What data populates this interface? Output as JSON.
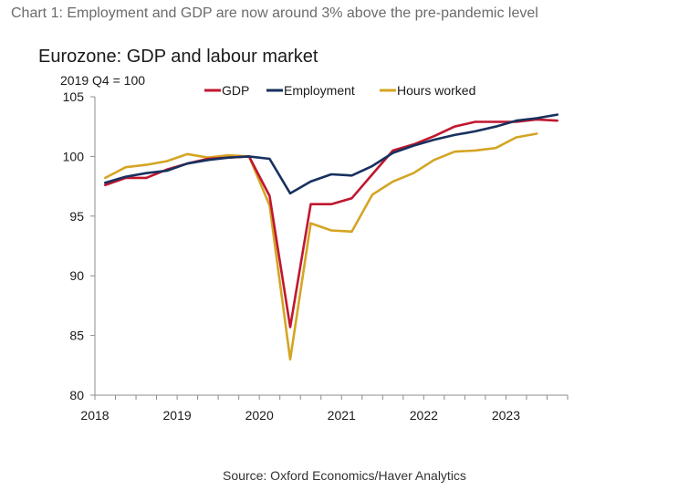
{
  "caption": "Chart 1: Employment and GDP are now around 3% above the pre-pandemic level",
  "source": "Source: Oxford Economics/Haver Analytics",
  "colors": {
    "GDP": "#c0172f",
    "Employment": "#17315e",
    "Hours worked": "#d4a524",
    "axis": "#8c8c8c"
  },
  "chart_data": {
    "type": "line",
    "title": "Eurozone: GDP and labour market",
    "ylabel": "2019 Q4 = 100",
    "xlabel": "",
    "ylim": [
      80,
      105
    ],
    "yticks": [
      80,
      85,
      90,
      95,
      100,
      105
    ],
    "year_labels": [
      "2018",
      "2019",
      "2020",
      "2021",
      "2022",
      "2023"
    ],
    "x": [
      "2018Q1",
      "2018Q2",
      "2018Q3",
      "2018Q4",
      "2019Q1",
      "2019Q2",
      "2019Q3",
      "2019Q4",
      "2020Q1",
      "2020Q2",
      "2020Q3",
      "2020Q4",
      "2021Q1",
      "2021Q2",
      "2021Q3",
      "2021Q4",
      "2022Q1",
      "2022Q2",
      "2022Q3",
      "2022Q4",
      "2023Q1",
      "2023Q2",
      "2023Q3"
    ],
    "series": [
      {
        "name": "GDP",
        "values": [
          97.6,
          98.2,
          98.2,
          98.9,
          99.4,
          99.8,
          99.9,
          100.0,
          96.7,
          85.7,
          96.0,
          96.0,
          96.5,
          98.5,
          100.5,
          101.0,
          101.7,
          102.5,
          102.9,
          102.9,
          102.9,
          103.1,
          103.0
        ]
      },
      {
        "name": "Employment",
        "values": [
          97.8,
          98.3,
          98.6,
          98.8,
          99.4,
          99.7,
          99.9,
          100.0,
          99.8,
          96.9,
          97.9,
          98.5,
          98.4,
          99.2,
          100.3,
          100.9,
          101.4,
          101.8,
          102.1,
          102.5,
          103.0,
          103.2,
          103.5
        ]
      },
      {
        "name": "Hours worked",
        "values": [
          98.2,
          99.1,
          99.3,
          99.6,
          100.2,
          99.9,
          100.1,
          100.0,
          95.9,
          83.0,
          94.4,
          93.8,
          93.7,
          96.8,
          97.9,
          98.6,
          99.7,
          100.4,
          100.5,
          100.7,
          101.6,
          101.9,
          null
        ]
      }
    ],
    "legend": [
      "GDP",
      "Employment",
      "Hours worked"
    ],
    "legend_position": "top"
  }
}
